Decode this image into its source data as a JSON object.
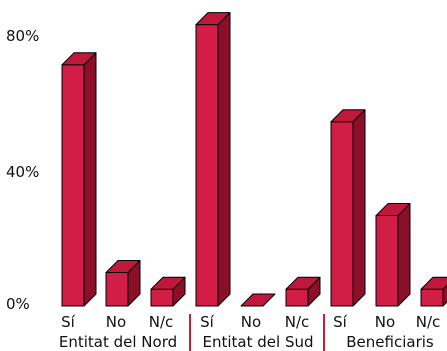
{
  "chart_data": {
    "type": "bar",
    "style": "3d",
    "y_ticks": [
      "80%",
      "40%",
      "0%"
    ],
    "ylim": [
      0,
      90
    ],
    "grid": false,
    "groups": [
      {
        "label": "Entitat del Nord",
        "categories": [
          "Sí",
          "No",
          "N/c"
        ],
        "values": [
          72,
          10,
          5
        ]
      },
      {
        "label": "Entitat del Sud",
        "categories": [
          "Sí",
          "No",
          "N/c"
        ],
        "values": [
          84,
          0,
          5
        ]
      },
      {
        "label": "Beneficiaris",
        "categories": [
          "Sí",
          "No",
          "N/c"
        ],
        "values": [
          55,
          27,
          5
        ]
      }
    ],
    "colors": {
      "bar_front": "#d21e46",
      "bar_side": "#8c0f2a",
      "bar_top": "#c0173c",
      "outline": "#000000",
      "separator": "#c41e3a"
    }
  }
}
